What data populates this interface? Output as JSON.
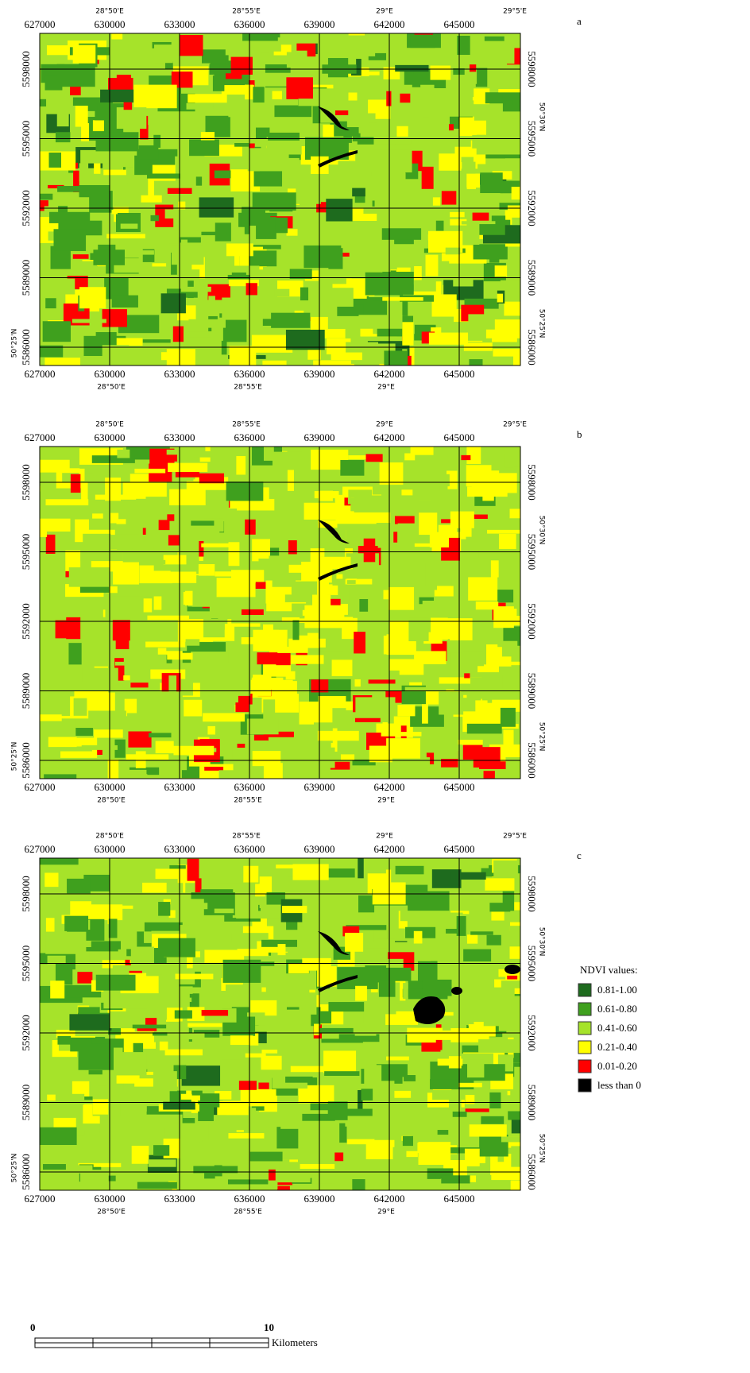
{
  "panels": [
    {
      "label": "a"
    },
    {
      "label": "b"
    },
    {
      "label": "c"
    }
  ],
  "grid_labels": {
    "eastings": [
      627000,
      630000,
      633000,
      636000,
      639000,
      642000,
      645000
    ],
    "northings": [
      5598000,
      5595000,
      5592000,
      5589000,
      5586000
    ],
    "longitudes": [
      "28°50'E",
      "28°55'E",
      "29°E",
      "29°5'E"
    ],
    "latitudes": [
      "50°30'N",
      "50°25'N"
    ]
  },
  "legend": {
    "title": "NDVI values:",
    "items": [
      {
        "label": "0.81-1.00",
        "color": "#1e6b1e"
      },
      {
        "label": "0.61-0.80",
        "color": "#3fa01e"
      },
      {
        "label": "0.41-0.60",
        "color": "#a6e32a"
      },
      {
        "label": "0.21-0.40",
        "color": "#ffff00"
      },
      {
        "label": "0.01-0.20",
        "color": "#ff0000"
      },
      {
        "label": "less than 0",
        "color": "#000000"
      }
    ]
  },
  "scale_bar": {
    "labels": [
      "0",
      "10"
    ],
    "unit": "Kilometers"
  }
}
